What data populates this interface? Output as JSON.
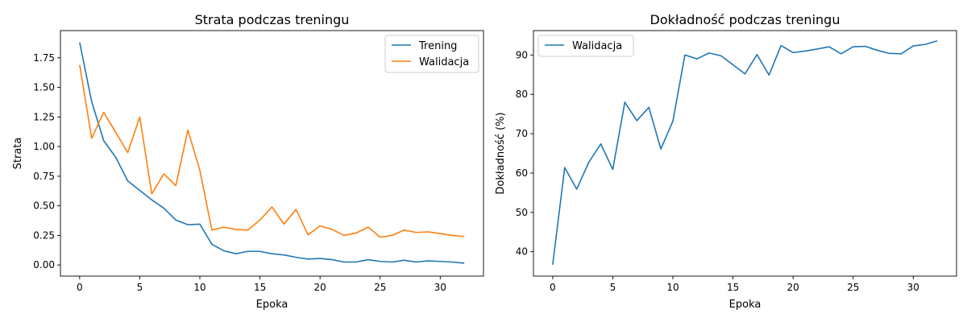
{
  "chart_data": [
    {
      "type": "line",
      "title": "Strata podczas treningu",
      "xlabel": "Epoka",
      "ylabel": "Strata",
      "xlim": [
        -1.6,
        33.6
      ],
      "ylim": [
        -0.094,
        1.98
      ],
      "xticks": [
        0,
        5,
        10,
        15,
        20,
        25,
        30
      ],
      "yticks": [
        0.0,
        0.25,
        0.5,
        0.75,
        1.0,
        1.25,
        1.5,
        1.75
      ],
      "ytick_labels": [
        "0.00",
        "0.25",
        "0.50",
        "0.75",
        "1.00",
        "1.25",
        "1.50",
        "1.75"
      ],
      "grid": false,
      "legend": "top-right",
      "x": [
        0,
        1,
        2,
        3,
        4,
        5,
        6,
        7,
        8,
        9,
        10,
        11,
        12,
        13,
        14,
        15,
        16,
        17,
        18,
        19,
        20,
        21,
        22,
        23,
        24,
        25,
        26,
        27,
        28,
        29,
        30,
        31,
        32
      ],
      "series": [
        {
          "name": "Trening",
          "color": "#1f77b4",
          "values": [
            1.88,
            1.38,
            1.05,
            0.91,
            0.71,
            0.63,
            0.55,
            0.48,
            0.38,
            0.34,
            0.345,
            0.175,
            0.12,
            0.095,
            0.115,
            0.115,
            0.095,
            0.085,
            0.065,
            0.05,
            0.055,
            0.045,
            0.025,
            0.025,
            0.045,
            0.03,
            0.025,
            0.04,
            0.025,
            0.035,
            0.03,
            0.025,
            0.015
          ]
        },
        {
          "name": "Walidacja",
          "color": "#ff7f0e",
          "values": [
            1.69,
            1.07,
            1.29,
            1.12,
            0.95,
            1.25,
            0.6,
            0.77,
            0.67,
            1.14,
            0.8,
            0.295,
            0.32,
            0.3,
            0.295,
            0.38,
            0.49,
            0.345,
            0.47,
            0.255,
            0.33,
            0.3,
            0.25,
            0.27,
            0.32,
            0.235,
            0.25,
            0.295,
            0.275,
            0.28,
            0.265,
            0.25,
            0.24
          ]
        }
      ]
    },
    {
      "type": "line",
      "title": "Dokładność podczas treningu",
      "xlabel": "Epoka",
      "ylabel": "Dokładność (%)",
      "xlim": [
        -1.6,
        33.6
      ],
      "ylim": [
        33.8,
        96.2
      ],
      "xticks": [
        0,
        5,
        10,
        15,
        20,
        25,
        30
      ],
      "yticks": [
        40,
        50,
        60,
        70,
        80,
        90
      ],
      "ytick_labels": [
        "40",
        "50",
        "60",
        "70",
        "80",
        "90"
      ],
      "grid": false,
      "legend": "top-left",
      "x": [
        0,
        1,
        2,
        3,
        4,
        5,
        6,
        7,
        8,
        9,
        10,
        11,
        12,
        13,
        14,
        15,
        16,
        17,
        18,
        19,
        20,
        21,
        22,
        23,
        24,
        25,
        26,
        27,
        28,
        29,
        30,
        31,
        32
      ],
      "series": [
        {
          "name": "Walidacja",
          "color": "#1f77b4",
          "values": [
            36.7,
            61.4,
            55.9,
            62.7,
            67.4,
            60.9,
            78,
            73.3,
            76.7,
            66.1,
            73.2,
            90,
            89,
            90.5,
            89.8,
            87.5,
            85.2,
            90.1,
            84.9,
            92.4,
            90.6,
            91,
            91.5,
            92.1,
            90.3,
            92.1,
            92.2,
            91.2,
            90.4,
            90.3,
            92.3,
            92.7,
            93.6
          ]
        }
      ]
    }
  ]
}
